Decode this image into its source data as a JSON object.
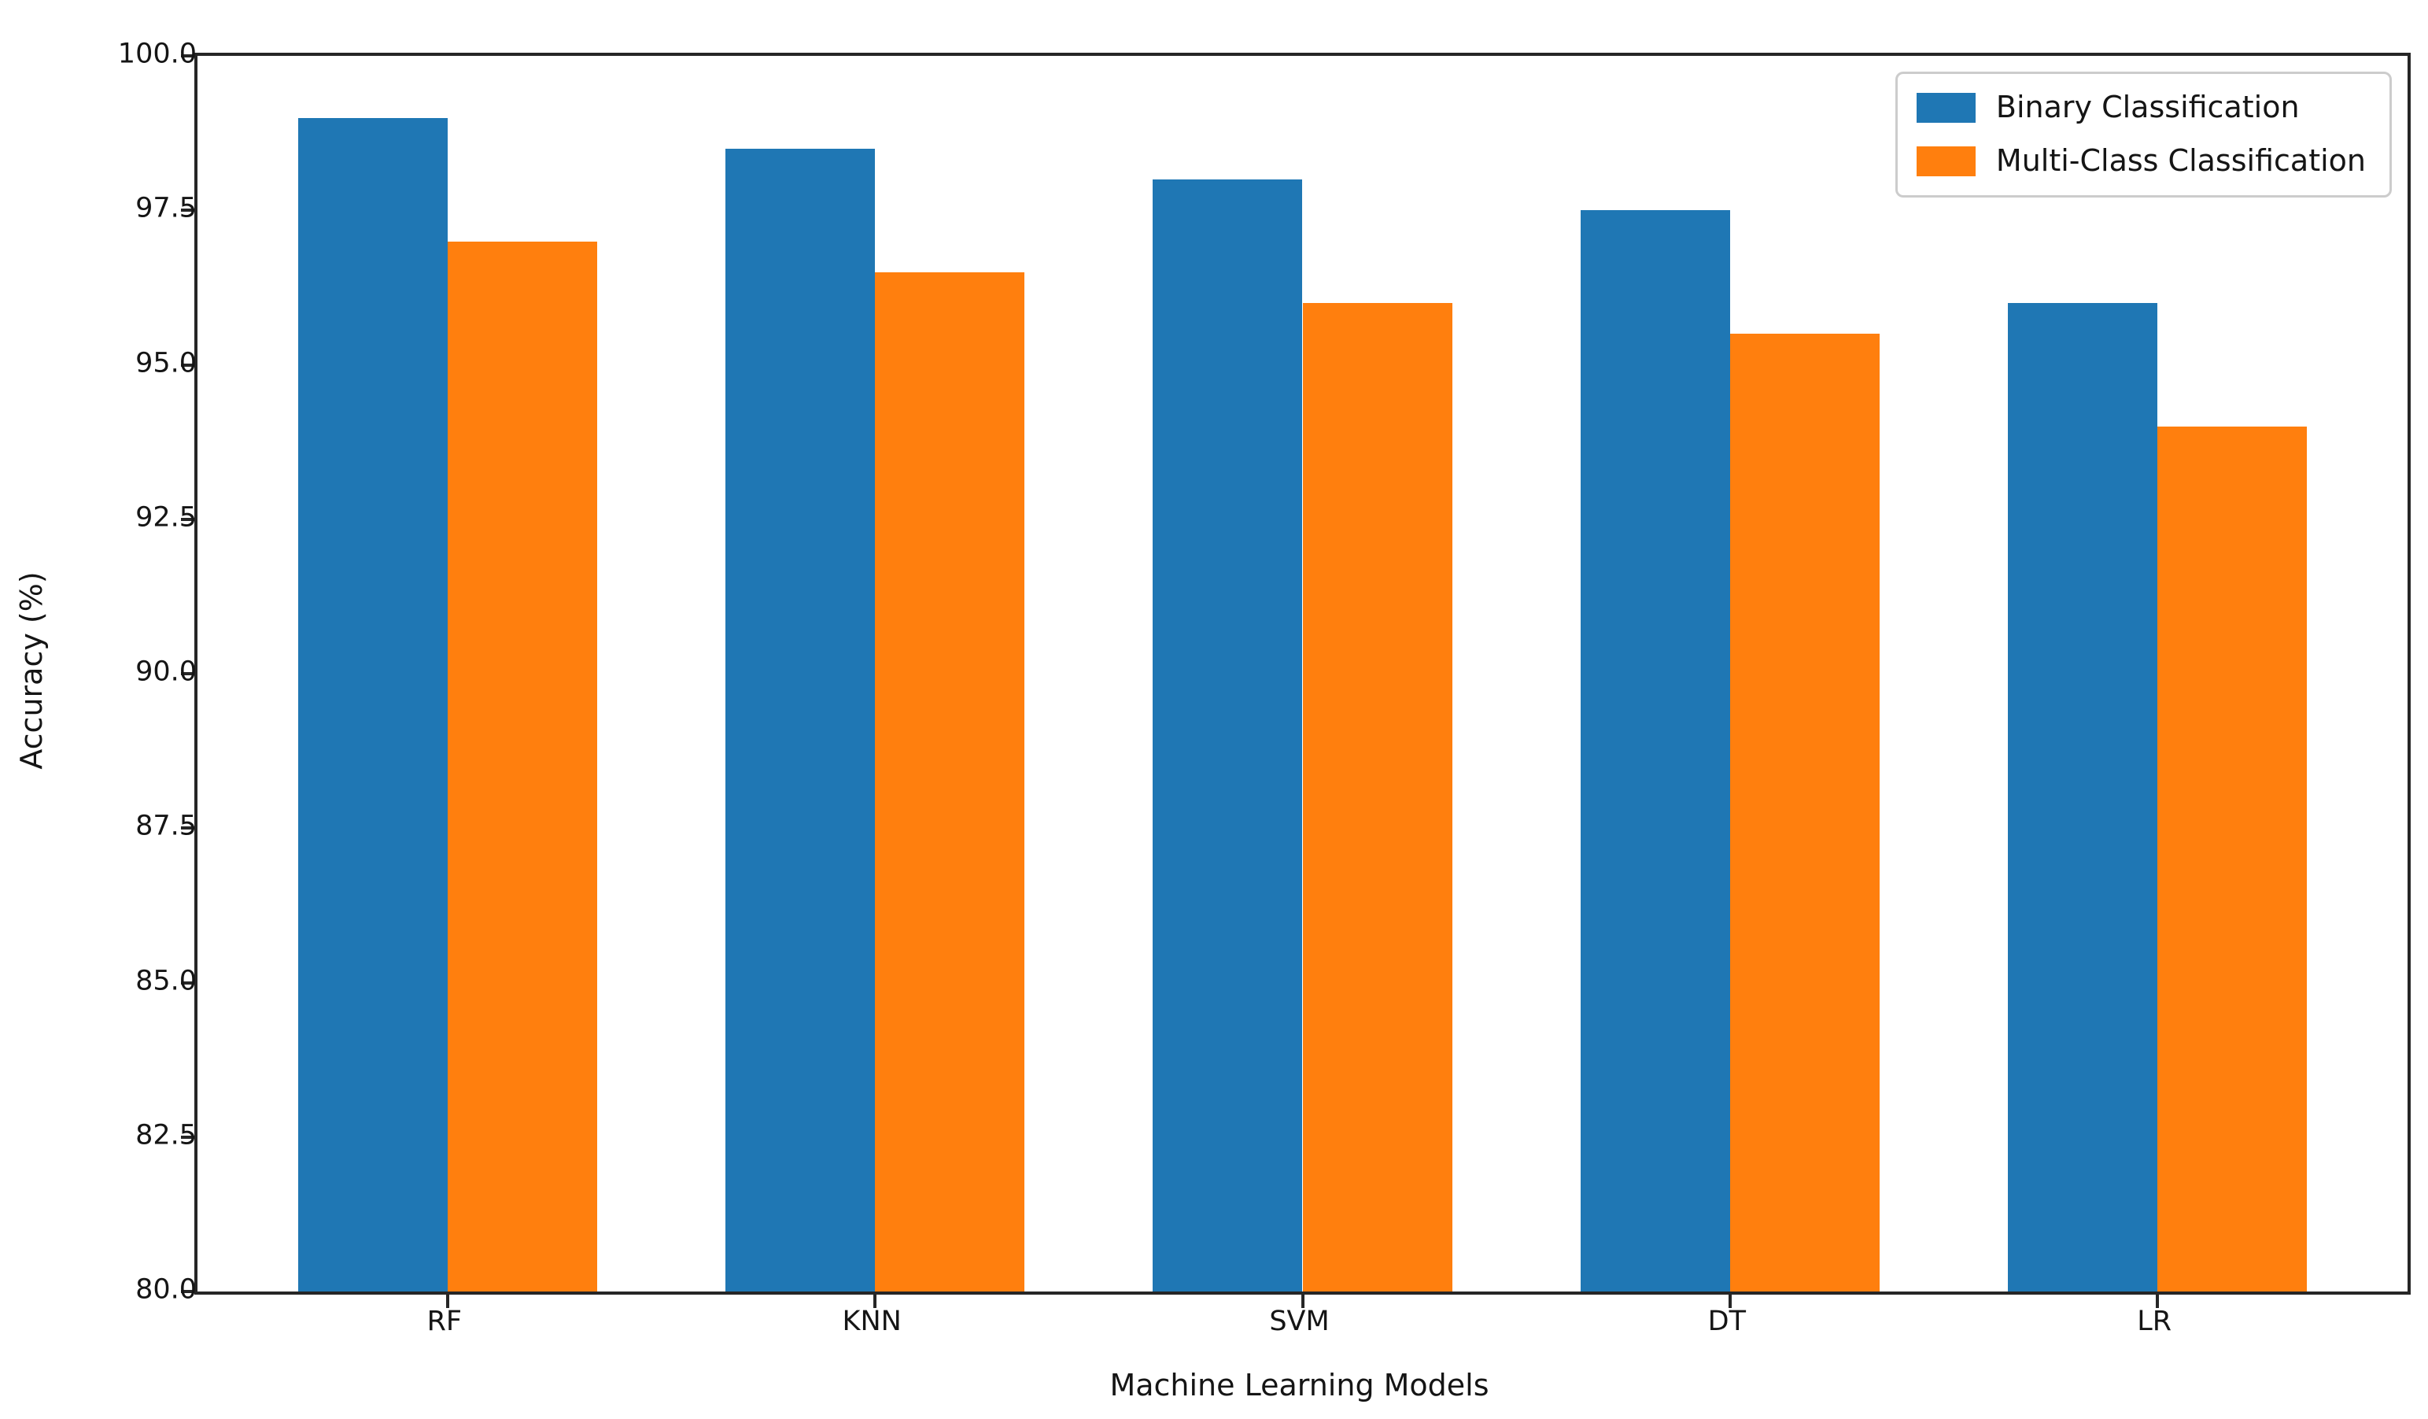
{
  "chart_data": {
    "type": "bar",
    "title": "",
    "categories": [
      "RF",
      "KNN",
      "SVM",
      "DT",
      "LR"
    ],
    "series": [
      {
        "name": "Binary Classification",
        "color": "#1f77b4",
        "values": [
          99.0,
          98.5,
          98.0,
          97.5,
          96.0
        ]
      },
      {
        "name": "Multi-Class Classification",
        "color": "#ff7f0e",
        "values": [
          97.0,
          96.5,
          96.0,
          95.5,
          94.0
        ]
      }
    ],
    "xlabel": "Machine Learning Models",
    "ylabel": "Accuracy (%)",
    "ylim": [
      80.0,
      100.0
    ],
    "ytick_step": 2.5,
    "ytick_labels": [
      "80.0",
      "82.5",
      "85.0",
      "87.5",
      "90.0",
      "92.5",
      "95.0",
      "97.5",
      "100.0"
    ],
    "bar_width_data_units": 0.35,
    "x_margin_fraction": 0.05,
    "grid": false,
    "legend_position": "upper right",
    "spine_color": "#262626",
    "background_color": "#ffffff"
  }
}
